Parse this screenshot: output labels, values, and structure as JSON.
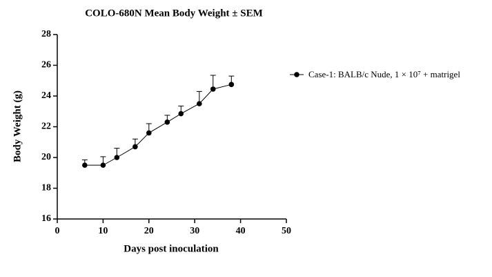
{
  "chart_data": {
    "type": "line",
    "title": "COLO-680N Mean Body Weight ± SEM",
    "xlabel": "Days post inoculation",
    "ylabel": "Body Weight (g)",
    "xlim": [
      0,
      50
    ],
    "xticks": [
      0,
      10,
      20,
      30,
      40,
      50
    ],
    "ylim": [
      16,
      28
    ],
    "yticks": [
      16,
      18,
      20,
      22,
      24,
      26,
      28
    ],
    "series": [
      {
        "name": "Case-1: BALB/c Nude, 1 × 10⁷ + matrigel",
        "color": "#000000",
        "x": [
          6,
          10,
          13,
          17,
          20,
          24,
          27,
          31,
          34,
          38
        ],
        "values": [
          19.5,
          19.5,
          20.0,
          20.7,
          21.6,
          22.3,
          22.85,
          23.5,
          24.45,
          24.75
        ],
        "errors": [
          0.35,
          0.55,
          0.6,
          0.5,
          0.6,
          0.45,
          0.5,
          0.8,
          0.9,
          0.55
        ]
      }
    ],
    "legend": "right"
  }
}
